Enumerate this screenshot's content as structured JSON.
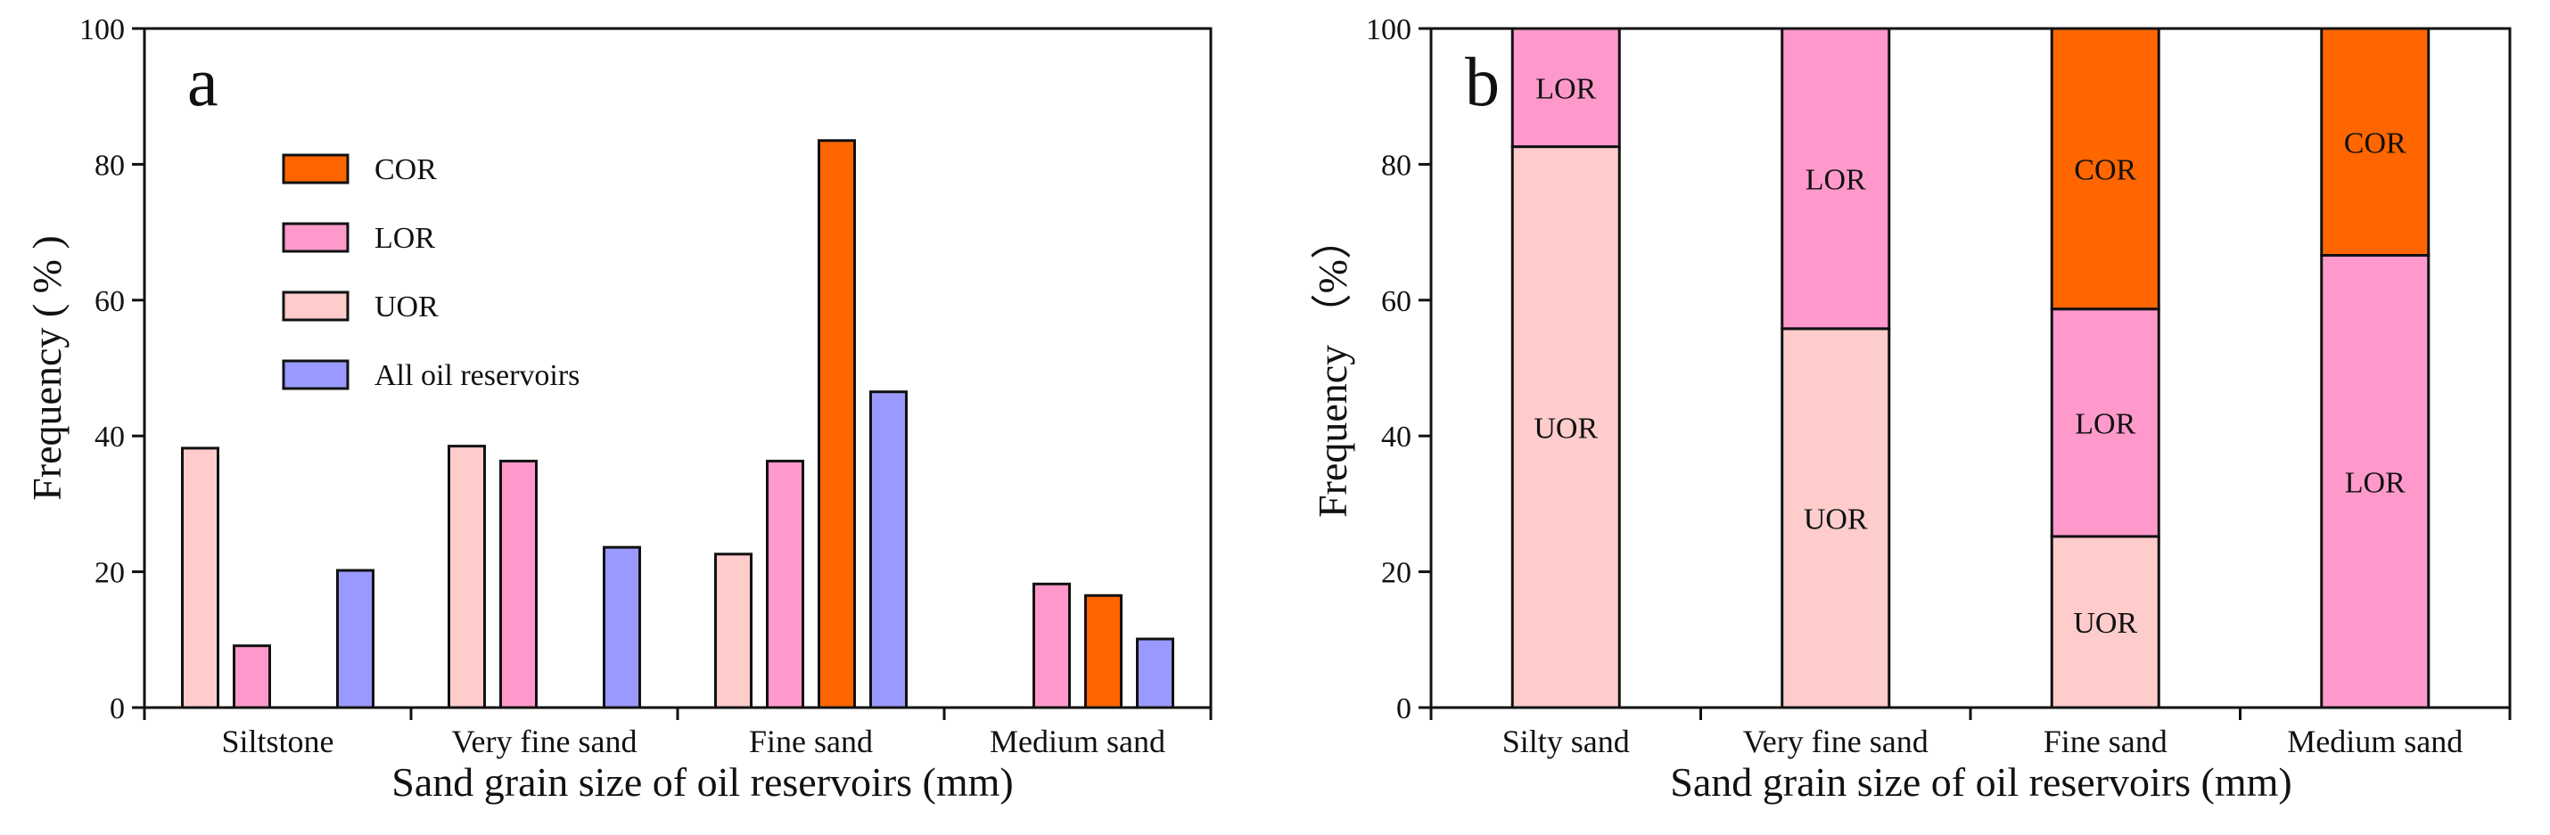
{
  "colors": {
    "COR": "#ff6600",
    "LOR": "#ff99cc",
    "UOR": "#ffcccc",
    "All": "#9999ff"
  },
  "chart_data": [
    {
      "type": "bar",
      "panel_label": "a",
      "categories": [
        "Siltstone",
        "Very fine sand",
        "Fine sand",
        "Medium sand"
      ],
      "series": [
        {
          "key": "UOR",
          "name": "UOR",
          "values": [
            38.2,
            38.5,
            22.6,
            null
          ]
        },
        {
          "key": "LOR",
          "name": "LOR",
          "values": [
            9.1,
            36.3,
            36.3,
            18.2
          ]
        },
        {
          "key": "COR",
          "name": "COR",
          "values": [
            null,
            null,
            83.5,
            16.5
          ]
        },
        {
          "key": "All",
          "name": "All oil reservoirs",
          "values": [
            20.2,
            23.6,
            46.5,
            10.1
          ]
        }
      ],
      "legend": [
        {
          "key": "COR",
          "label": "COR"
        },
        {
          "key": "LOR",
          "label": "LOR"
        },
        {
          "key": "UOR",
          "label": "UOR"
        },
        {
          "key": "All",
          "label": "All oil reservoirs"
        }
      ],
      "legend_position": "upper-left",
      "xlabel": "Sand grain size of oil reservoirs (mm)",
      "ylabel": "Frequency ( % )",
      "ylim": [
        0,
        100
      ],
      "yticks": [
        0,
        20,
        40,
        60,
        80,
        100
      ]
    },
    {
      "type": "stacked-bar",
      "panel_label": "b",
      "categories": [
        "Silty sand",
        "Very fine sand",
        "Fine sand",
        "Medium sand"
      ],
      "series": [
        {
          "key": "UOR",
          "name": "UOR",
          "values": [
            82.6,
            55.8,
            25.2,
            0
          ]
        },
        {
          "key": "LOR",
          "name": "LOR",
          "values": [
            17.4,
            44.2,
            33.5,
            66.6
          ]
        },
        {
          "key": "COR",
          "name": "COR",
          "values": [
            0,
            0,
            41.3,
            33.4
          ]
        }
      ],
      "xlabel": "Sand grain size of oil reservoirs (mm)",
      "ylabel": "Frequency （%）",
      "ylim": [
        0,
        100
      ],
      "yticks": [
        0,
        20,
        40,
        60,
        80,
        100
      ]
    }
  ]
}
